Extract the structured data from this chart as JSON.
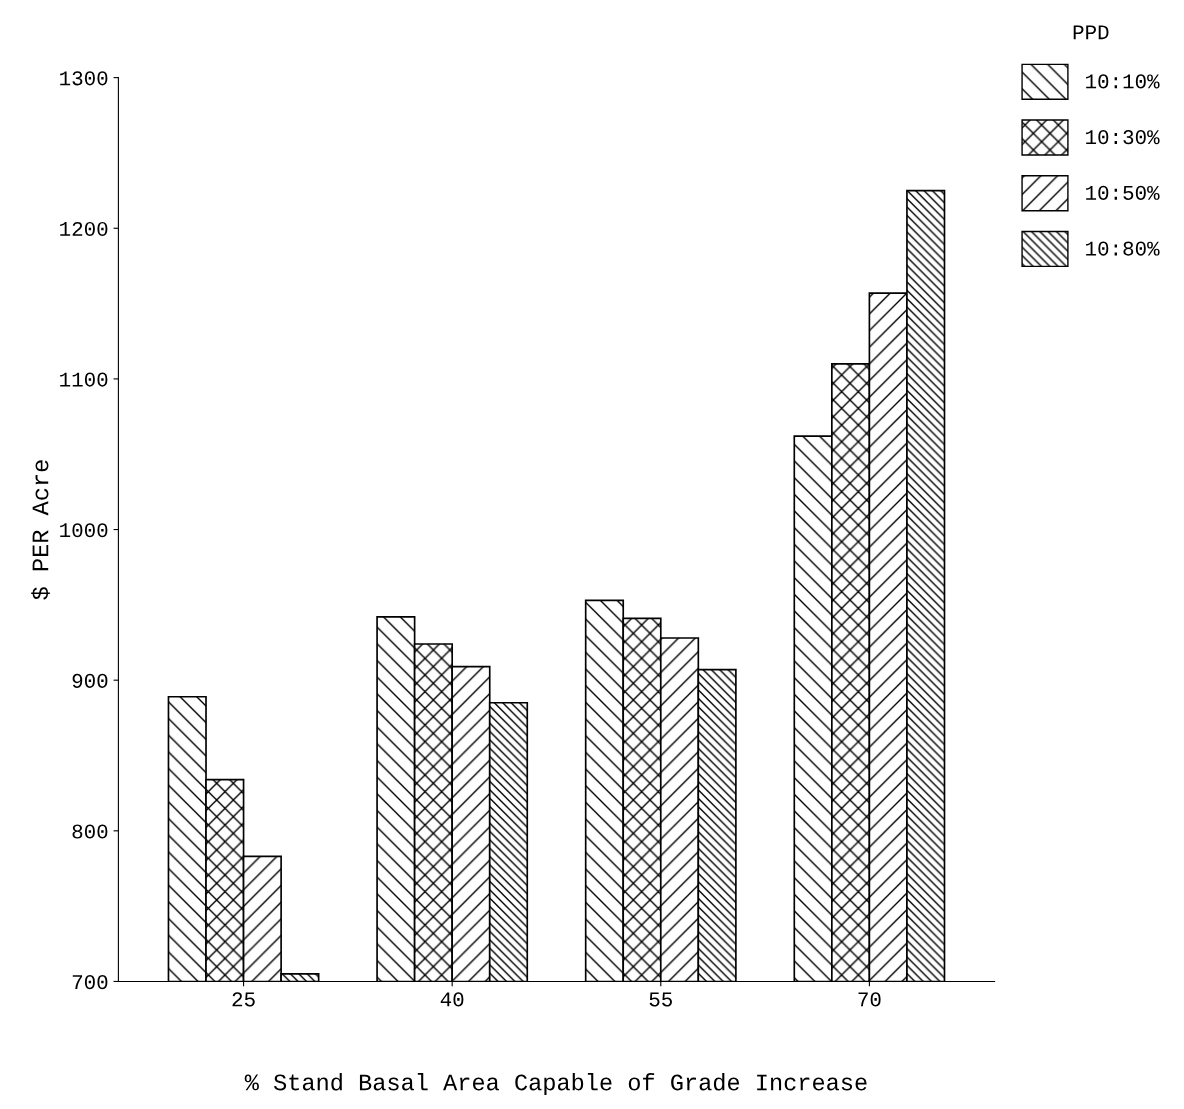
{
  "chart_data": {
    "type": "bar",
    "xlabel": "% Stand Basal Area Capable of Grade Increase",
    "ylabel": "$ PER Acre",
    "legend_title": "PPD",
    "categories": [
      "25",
      "40",
      "55",
      "70"
    ],
    "series": [
      {
        "name": "10:10%",
        "color": "#000000",
        "values": [
          889,
          942,
          953,
          1062
        ]
      },
      {
        "name": "10:30%",
        "color": "#000000",
        "values": [
          834,
          924,
          941,
          1110
        ]
      },
      {
        "name": "10:50%",
        "color": "#000000",
        "values": [
          783,
          909,
          928,
          1157
        ]
      },
      {
        "name": "10:80%",
        "color": "#000000",
        "values": [
          705,
          885,
          907,
          1225
        ]
      }
    ],
    "ylim": [
      700,
      1300
    ],
    "yticks": [
      700,
      800,
      900,
      1000,
      1100,
      1200,
      1300
    ],
    "grid": false,
    "legend": "top right"
  }
}
